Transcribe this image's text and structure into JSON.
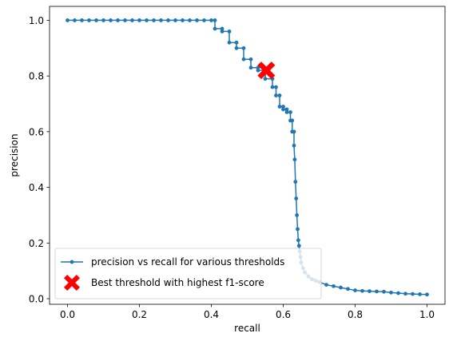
{
  "chart_data": {
    "type": "line",
    "xlabel": "recall",
    "ylabel": "precision",
    "xlim": [
      -0.05,
      1.05
    ],
    "ylim": [
      -0.02,
      1.05
    ],
    "xticks": [
      0.0,
      0.2,
      0.4,
      0.6,
      0.8,
      1.0
    ],
    "xtick_labels": [
      "0.0",
      "0.2",
      "0.4",
      "0.6",
      "0.8",
      "1.0"
    ],
    "yticks": [
      0.0,
      0.2,
      0.4,
      0.6,
      0.8,
      1.0
    ],
    "ytick_labels": [
      "0.0",
      "0.2",
      "0.4",
      "0.6",
      "0.8",
      "1.0"
    ],
    "grid": false,
    "legend_position": "lower-left",
    "colors": {
      "series": "#1f77b4",
      "best": "#ff0000"
    },
    "series": [
      {
        "name": "precision vs recall for various thresholds",
        "style": "line-with-dot-markers",
        "x": [
          0.0,
          0.02,
          0.04,
          0.06,
          0.08,
          0.1,
          0.12,
          0.14,
          0.16,
          0.18,
          0.2,
          0.22,
          0.24,
          0.26,
          0.28,
          0.3,
          0.32,
          0.34,
          0.36,
          0.38,
          0.4,
          0.41,
          0.41,
          0.43,
          0.43,
          0.45,
          0.45,
          0.47,
          0.47,
          0.49,
          0.49,
          0.51,
          0.51,
          0.53,
          0.53,
          0.55,
          0.55,
          0.57,
          0.57,
          0.58,
          0.58,
          0.59,
          0.59,
          0.6,
          0.6,
          0.61,
          0.61,
          0.62,
          0.62,
          0.625,
          0.625,
          0.63,
          0.63,
          0.632,
          0.634,
          0.636,
          0.638,
          0.64,
          0.642,
          0.644,
          0.646,
          0.648,
          0.65,
          0.655,
          0.66,
          0.67,
          0.68,
          0.69,
          0.7,
          0.72,
          0.74,
          0.76,
          0.78,
          0.8,
          0.82,
          0.84,
          0.86,
          0.88,
          0.9,
          0.92,
          0.94,
          0.96,
          0.98,
          1.0
        ],
        "y": [
          1.0,
          1.0,
          1.0,
          1.0,
          1.0,
          1.0,
          1.0,
          1.0,
          1.0,
          1.0,
          1.0,
          1.0,
          1.0,
          1.0,
          1.0,
          1.0,
          1.0,
          1.0,
          1.0,
          1.0,
          1.0,
          1.0,
          0.97,
          0.97,
          0.96,
          0.96,
          0.92,
          0.92,
          0.9,
          0.9,
          0.86,
          0.86,
          0.83,
          0.83,
          0.82,
          0.82,
          0.79,
          0.79,
          0.76,
          0.76,
          0.73,
          0.73,
          0.69,
          0.69,
          0.68,
          0.68,
          0.67,
          0.67,
          0.64,
          0.64,
          0.6,
          0.6,
          0.55,
          0.5,
          0.42,
          0.36,
          0.3,
          0.25,
          0.21,
          0.19,
          0.17,
          0.15,
          0.13,
          0.11,
          0.095,
          0.08,
          0.07,
          0.065,
          0.06,
          0.05,
          0.045,
          0.04,
          0.035,
          0.03,
          0.028,
          0.027,
          0.026,
          0.025,
          0.022,
          0.02,
          0.018,
          0.017,
          0.016,
          0.015
        ]
      },
      {
        "name": "Best threshold with highest f1-score",
        "style": "big-x-marker",
        "x": [
          0.553
        ],
        "y": [
          0.82
        ]
      }
    ]
  }
}
